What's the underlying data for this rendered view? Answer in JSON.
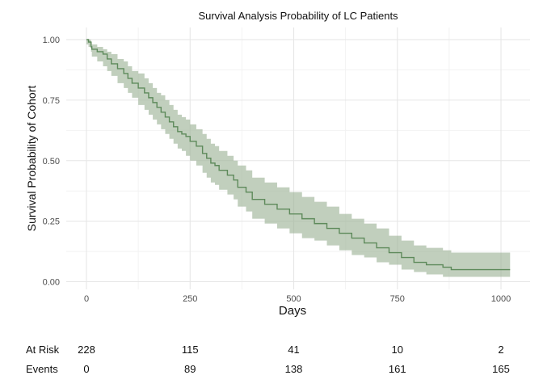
{
  "chart_data": {
    "type": "line",
    "title": "Survival Analysis Probability of LC Patients",
    "xlabel": "Days",
    "ylabel": "Survival Probability of Cohort",
    "xlim": [
      0,
      1022
    ],
    "ylim": [
      0,
      1
    ],
    "x_ticks": [
      0,
      250,
      500,
      750,
      1000
    ],
    "y_ticks": [
      0,
      0.25,
      0.5,
      0.75,
      1
    ],
    "y_tick_labels": [
      "0.00",
      "0.25",
      "0.50",
      "0.75",
      "1.00"
    ],
    "grid": true,
    "legend": "none",
    "colors": {
      "line": "#5e8a5b",
      "band": "#9fb59a"
    },
    "series": [
      {
        "step": "post",
        "x": [
          0,
          5,
          11,
          13,
          26,
          40,
          50,
          60,
          75,
          90,
          100,
          110,
          125,
          140,
          150,
          160,
          170,
          180,
          190,
          200,
          210,
          220,
          230,
          240,
          250,
          265,
          280,
          290,
          300,
          310,
          320,
          340,
          355,
          365,
          385,
          400,
          430,
          460,
          490,
          520,
          550,
          580,
          610,
          640,
          670,
          700,
          730,
          760,
          790,
          820,
          860,
          880,
          1022
        ],
        "y": [
          1.0,
          0.99,
          0.97,
          0.96,
          0.95,
          0.94,
          0.92,
          0.9,
          0.88,
          0.86,
          0.84,
          0.82,
          0.8,
          0.78,
          0.76,
          0.74,
          0.72,
          0.7,
          0.68,
          0.66,
          0.64,
          0.62,
          0.61,
          0.6,
          0.58,
          0.56,
          0.53,
          0.51,
          0.49,
          0.48,
          0.46,
          0.44,
          0.42,
          0.39,
          0.37,
          0.34,
          0.32,
          0.3,
          0.28,
          0.26,
          0.24,
          0.22,
          0.2,
          0.18,
          0.16,
          0.14,
          0.12,
          0.1,
          0.08,
          0.07,
          0.06,
          0.05,
          0.05
        ],
        "lower": [
          0.98,
          0.97,
          0.95,
          0.93,
          0.91,
          0.89,
          0.87,
          0.85,
          0.82,
          0.8,
          0.78,
          0.76,
          0.73,
          0.71,
          0.69,
          0.67,
          0.65,
          0.63,
          0.61,
          0.59,
          0.57,
          0.55,
          0.54,
          0.52,
          0.5,
          0.48,
          0.45,
          0.43,
          0.41,
          0.4,
          0.38,
          0.36,
          0.34,
          0.31,
          0.29,
          0.26,
          0.24,
          0.22,
          0.2,
          0.18,
          0.17,
          0.15,
          0.13,
          0.11,
          0.1,
          0.08,
          0.07,
          0.05,
          0.04,
          0.03,
          0.02,
          0.02,
          0.02
        ],
        "upper": [
          1.0,
          1.0,
          0.99,
          0.98,
          0.97,
          0.96,
          0.95,
          0.94,
          0.92,
          0.91,
          0.89,
          0.87,
          0.86,
          0.84,
          0.82,
          0.8,
          0.78,
          0.77,
          0.75,
          0.73,
          0.71,
          0.69,
          0.68,
          0.67,
          0.65,
          0.63,
          0.61,
          0.59,
          0.57,
          0.56,
          0.54,
          0.52,
          0.5,
          0.48,
          0.46,
          0.43,
          0.41,
          0.39,
          0.37,
          0.35,
          0.33,
          0.31,
          0.28,
          0.26,
          0.24,
          0.22,
          0.19,
          0.17,
          0.15,
          0.14,
          0.13,
          0.12,
          0.12
        ]
      }
    ],
    "risk_table": {
      "times": [
        0,
        250,
        500,
        750,
        1000
      ],
      "rows": [
        {
          "label": "At Risk",
          "values": [
            "228",
            "115",
            "41",
            "10",
            "2"
          ]
        },
        {
          "label": "Events",
          "values": [
            "0",
            "89",
            "138",
            "161",
            "165"
          ]
        }
      ]
    }
  }
}
